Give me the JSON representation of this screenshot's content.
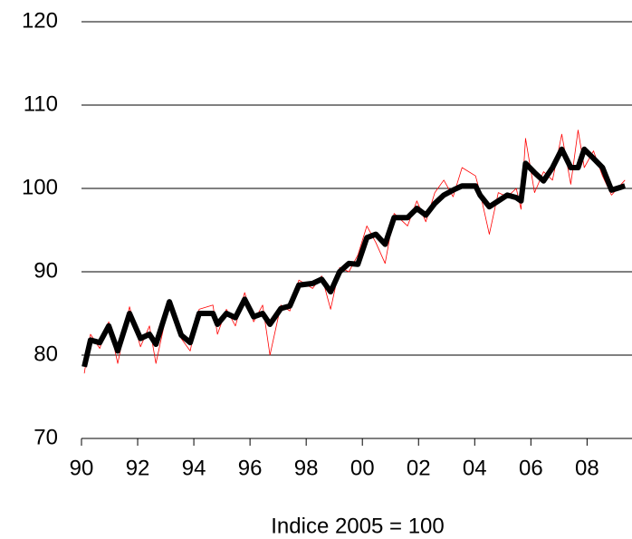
{
  "chart_data": {
    "type": "line",
    "xlabel": "Indice 2005 = 100",
    "x": [
      1990.1,
      1990.32,
      1990.65,
      1990.97,
      1991.29,
      1991.71,
      1992.1,
      1992.42,
      1992.65,
      1993.13,
      1993.55,
      1993.87,
      1994.19,
      1994.68,
      1994.84,
      1995.16,
      1995.48,
      1995.81,
      1996.13,
      1996.45,
      1996.71,
      1997.1,
      1997.42,
      1997.74,
      1998.23,
      1998.55,
      1998.87,
      1999.19,
      1999.52,
      1999.84,
      2000.16,
      2000.48,
      2000.81,
      2001.13,
      2001.61,
      2001.94,
      2002.26,
      2002.58,
      2002.9,
      2003.23,
      2003.55,
      2004.03,
      2004.19,
      2004.52,
      2004.84,
      2005.16,
      2005.48,
      2005.65,
      2005.81,
      2006.13,
      2006.45,
      2006.77,
      2007.1,
      2007.42,
      2007.68,
      2007.9,
      2008.23,
      2008.55,
      2008.87,
      2009.35
    ],
    "series": [
      {
        "color": "#ff0000",
        "width": 0.8,
        "values": [
          77.8,
          82.5,
          80.8,
          84,
          79,
          85.8,
          81,
          83.5,
          79,
          86.5,
          82,
          80.5,
          85.5,
          86,
          82.5,
          85.5,
          83.5,
          87.5,
          84,
          86,
          80,
          86,
          85.3,
          89,
          88,
          89.5,
          85.5,
          90.5,
          90,
          92,
          95.5,
          93.5,
          91,
          97,
          95.5,
          98.5,
          96,
          99.5,
          101,
          99,
          102.5,
          101.5,
          99.5,
          94.5,
          99.5,
          99,
          100,
          97.5,
          106,
          99.5,
          102,
          101,
          106.5,
          100.5,
          107,
          102.5,
          104.5,
          101.5,
          99.2,
          101
        ]
      },
      {
        "color": "#000000",
        "width": 6,
        "values": [
          78.6,
          81.8,
          81.5,
          83.5,
          80.5,
          85,
          82,
          82.5,
          81.3,
          86.4,
          82.4,
          81.5,
          85,
          85,
          83.7,
          85,
          84.5,
          86.7,
          84.6,
          85,
          83.7,
          85.6,
          85.9,
          88.4,
          88.6,
          89.1,
          87.6,
          90,
          91,
          90.9,
          94.1,
          94.5,
          93.3,
          96.5,
          96.5,
          97.6,
          96.8,
          98.2,
          99.2,
          99.8,
          100.3,
          100.3,
          99.2,
          97.8,
          98.5,
          99.2,
          98.9,
          98.5,
          103,
          101.9,
          100.9,
          102.5,
          104.7,
          102.5,
          102.5,
          104.7,
          103.6,
          102.5,
          99.8,
          100.3
        ]
      }
    ],
    "xlim": [
      1990,
      2009.6
    ],
    "ylim": [
      70,
      120
    ],
    "xticks": [
      {
        "value": 1990,
        "label": "90"
      },
      {
        "value": 1992,
        "label": "92"
      },
      {
        "value": 1994,
        "label": "94"
      },
      {
        "value": 1996,
        "label": "96"
      },
      {
        "value": 1998,
        "label": "98"
      },
      {
        "value": 2000,
        "label": "00"
      },
      {
        "value": 2002,
        "label": "02"
      },
      {
        "value": 2004,
        "label": "04"
      },
      {
        "value": 2006,
        "label": "06"
      },
      {
        "value": 2008,
        "label": "08"
      }
    ],
    "yticks": [
      70,
      80,
      90,
      100,
      110,
      120
    ],
    "grid": true
  }
}
